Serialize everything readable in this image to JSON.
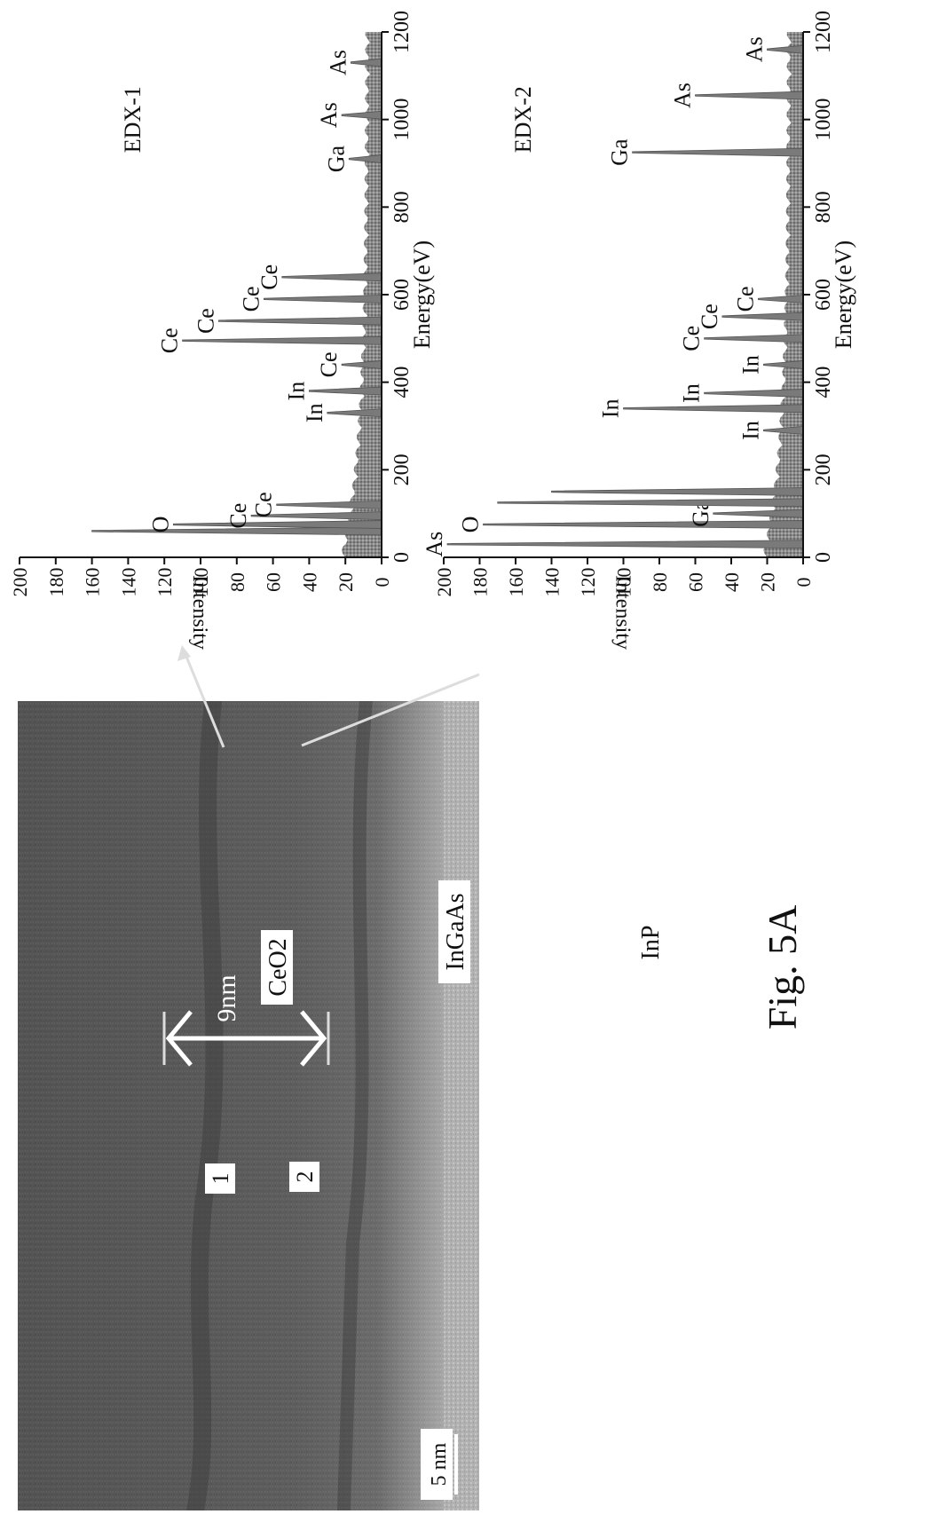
{
  "figure": {
    "caption": "Fig. 5A",
    "tem_image": {
      "scale_bar_label": "5 nm",
      "thickness_label": "9nm",
      "layer_labels": [
        "CeO2",
        "InGaAs",
        "InP"
      ],
      "point_markers": [
        "1",
        "2"
      ]
    }
  },
  "chart_data": [
    {
      "type": "bar",
      "title": "EDX-1",
      "xlabel": "Energy(eV)",
      "ylabel": "Intensity",
      "xlim": [
        0,
        1200
      ],
      "ylim": [
        0,
        200
      ],
      "xticks": [
        0,
        200,
        400,
        600,
        800,
        1000,
        1200
      ],
      "yticks": [
        0,
        20,
        40,
        60,
        80,
        100,
        120,
        140,
        160,
        180,
        200
      ],
      "grid": false,
      "peaks": [
        {
          "x": 60,
          "y": 160,
          "label": ""
        },
        {
          "x": 75,
          "y": 115,
          "label": "O"
        },
        {
          "x": 95,
          "y": 72,
          "label": "Ce"
        },
        {
          "x": 120,
          "y": 58,
          "label": "Ce"
        },
        {
          "x": 330,
          "y": 30,
          "label": "In"
        },
        {
          "x": 380,
          "y": 40,
          "label": "In"
        },
        {
          "x": 440,
          "y": 22,
          "label": "Ce"
        },
        {
          "x": 495,
          "y": 110,
          "label": "Ce"
        },
        {
          "x": 540,
          "y": 90,
          "label": "Ce"
        },
        {
          "x": 590,
          "y": 65,
          "label": "Ce"
        },
        {
          "x": 640,
          "y": 55,
          "label": "Ce"
        },
        {
          "x": 910,
          "y": 18,
          "label": "Ga"
        },
        {
          "x": 1010,
          "y": 22,
          "label": "As"
        },
        {
          "x": 1130,
          "y": 17,
          "label": "As"
        }
      ]
    },
    {
      "type": "bar",
      "title": "EDX-2",
      "xlabel": "Energy(eV)",
      "ylabel": "Intensity",
      "xlim": [
        0,
        1200
      ],
      "ylim": [
        0,
        200
      ],
      "xticks": [
        0,
        200,
        400,
        600,
        800,
        1000,
        1200
      ],
      "yticks": [
        0,
        20,
        40,
        60,
        80,
        100,
        120,
        140,
        160,
        180,
        200
      ],
      "grid": false,
      "peaks": [
        {
          "x": 30,
          "y": 198,
          "label": "As"
        },
        {
          "x": 75,
          "y": 178,
          "label": "O"
        },
        {
          "x": 100,
          "y": 50,
          "label": "Ga"
        },
        {
          "x": 125,
          "y": 170,
          "label": ""
        },
        {
          "x": 150,
          "y": 140,
          "label": ""
        },
        {
          "x": 290,
          "y": 22,
          "label": "In"
        },
        {
          "x": 340,
          "y": 100,
          "label": "In"
        },
        {
          "x": 375,
          "y": 55,
          "label": "In"
        },
        {
          "x": 440,
          "y": 22,
          "label": "In"
        },
        {
          "x": 500,
          "y": 55,
          "label": "Ce"
        },
        {
          "x": 550,
          "y": 45,
          "label": "Ce"
        },
        {
          "x": 590,
          "y": 25,
          "label": "Ce"
        },
        {
          "x": 925,
          "y": 95,
          "label": "Ga"
        },
        {
          "x": 1055,
          "y": 60,
          "label": "As"
        },
        {
          "x": 1160,
          "y": 20,
          "label": "As"
        }
      ]
    }
  ]
}
